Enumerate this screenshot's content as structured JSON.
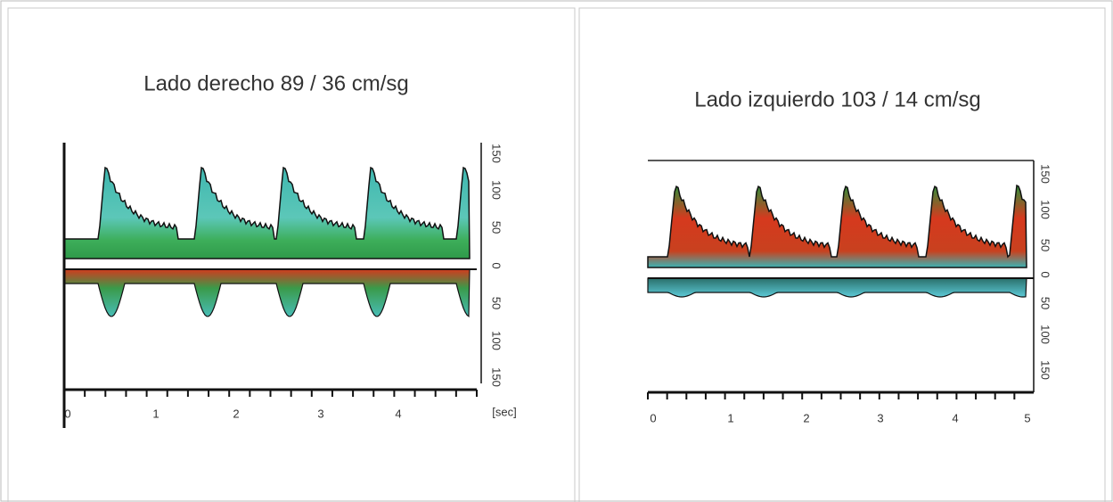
{
  "panels": [
    {
      "title": "Lado derecho 89 / 36 cm/sg",
      "y_labels": [
        "150",
        "100",
        "50",
        "0",
        "50",
        "100",
        "150"
      ],
      "x_labels": [
        "0",
        "1",
        "2",
        "3",
        "4"
      ],
      "unit": "[sec]"
    },
    {
      "title": "Lado izquierdo 103 / 14 cm/sg",
      "y_labels": [
        "150",
        "100",
        "50",
        "0",
        "50",
        "100",
        "150"
      ],
      "x_labels": [
        "0",
        "1",
        "2",
        "3",
        "4",
        "5"
      ]
    }
  ]
}
